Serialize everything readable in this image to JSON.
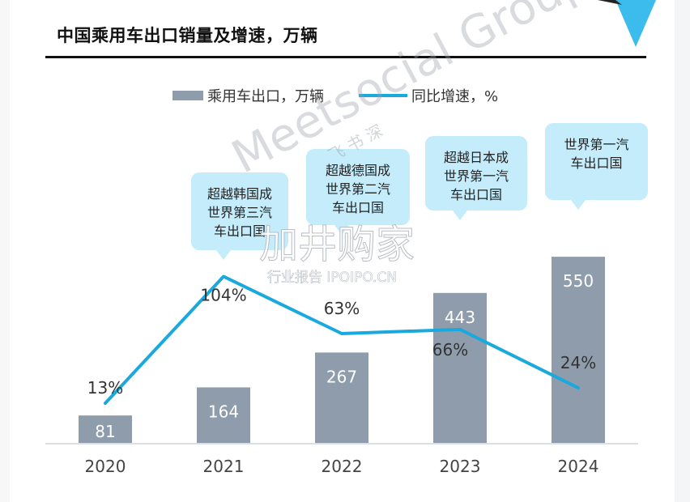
{
  "title": "中国乘用车出口销量及增速，万辆",
  "colors": {
    "bar": "#8e9cab",
    "line": "#1aa9df",
    "callout": "#c4ecfb",
    "arrow": "#3bbcec",
    "axis": "#cfd3d8",
    "text": "#333333"
  },
  "chart_data": {
    "type": "bar",
    "categories": [
      "2020",
      "2021",
      "2022",
      "2023",
      "2024"
    ],
    "series": [
      {
        "name": "乘用车出口，万辆",
        "type": "bar",
        "values": [
          81,
          164,
          267,
          443,
          550
        ],
        "labels": [
          "81",
          "164",
          "267",
          "443",
          "550"
        ]
      },
      {
        "name": "同比增速，%",
        "type": "line",
        "values": [
          13,
          104,
          63,
          66,
          24
        ],
        "labels": [
          "13%",
          "104%",
          "63%",
          "66%",
          "24%"
        ]
      }
    ],
    "legend_position": "top-center",
    "annotations": [
      {
        "category": "2021",
        "lines": [
          "超越韩国成",
          "世界第三汽",
          "车出口国"
        ]
      },
      {
        "category": "2022",
        "lines": [
          "超越德国成",
          "世界第二汽",
          "车出口国"
        ]
      },
      {
        "category": "2023",
        "lines": [
          "超越日本成",
          "世界第一汽",
          "车出口国"
        ]
      },
      {
        "category": "2024",
        "lines": [
          "世界第一汽",
          "车出口国"
        ]
      }
    ],
    "grid": false
  },
  "watermarks": {
    "brand": "Meetsocial Group",
    "chinese": "飞 书 深",
    "site_name": "加井购家",
    "site_sub": "行业报告 IPOIPO.CN"
  }
}
